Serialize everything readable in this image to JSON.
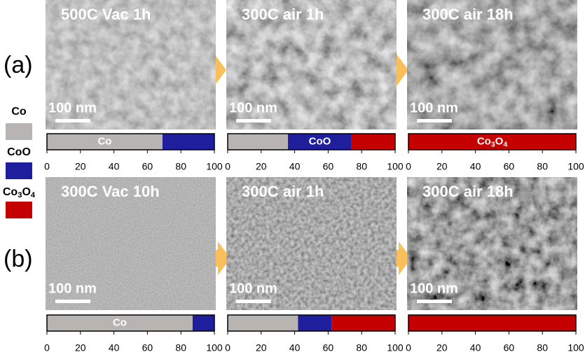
{
  "legend": [
    {
      "label": "Co",
      "color": "#b8b4b2"
    },
    {
      "label": "CoO",
      "color": "#1f1f9e"
    },
    {
      "label": "Co3O4",
      "color": "#c40000"
    }
  ],
  "axis": {
    "lim": [
      0,
      100
    ],
    "ticks": [
      0,
      20,
      40,
      60,
      80,
      100
    ]
  },
  "rows": [
    {
      "label": "(a)",
      "panels": [
        {
          "title": "500C Vac 1h",
          "scale": "100 nm",
          "segments": [
            {
              "value": 69,
              "color": "#b8b4b2",
              "label": "Co"
            },
            {
              "value": 31,
              "color": "#1f1f9e"
            }
          ]
        },
        {
          "title": "300C air 1h",
          "scale": "100 nm",
          "segments": [
            {
              "value": 36,
              "color": "#b8b4b2"
            },
            {
              "value": 38,
              "color": "#1f1f9e",
              "label": "CoO"
            },
            {
              "value": 26,
              "color": "#c40000"
            }
          ]
        },
        {
          "title": "300C air 18h",
          "scale": "100 nm",
          "segments": [
            {
              "value": 100,
              "color": "#c40000",
              "label": "Co3O4"
            }
          ]
        }
      ]
    },
    {
      "label": "(b)",
      "panels": [
        {
          "title": "300C Vac 10h",
          "scale": "100 nm",
          "segments": [
            {
              "value": 87,
              "color": "#b8b4b2",
              "label": "Co"
            },
            {
              "value": 13,
              "color": "#1f1f9e"
            }
          ]
        },
        {
          "title": "300C air 1h",
          "scale": "100 nm",
          "segments": [
            {
              "value": 42,
              "color": "#b8b4b2"
            },
            {
              "value": 20,
              "color": "#1f1f9e"
            },
            {
              "value": 38,
              "color": "#c40000"
            }
          ]
        },
        {
          "title": "300C air 18h",
          "scale": "100 nm",
          "segments": [
            {
              "value": 100,
              "color": "#c40000"
            }
          ]
        }
      ]
    }
  ]
}
